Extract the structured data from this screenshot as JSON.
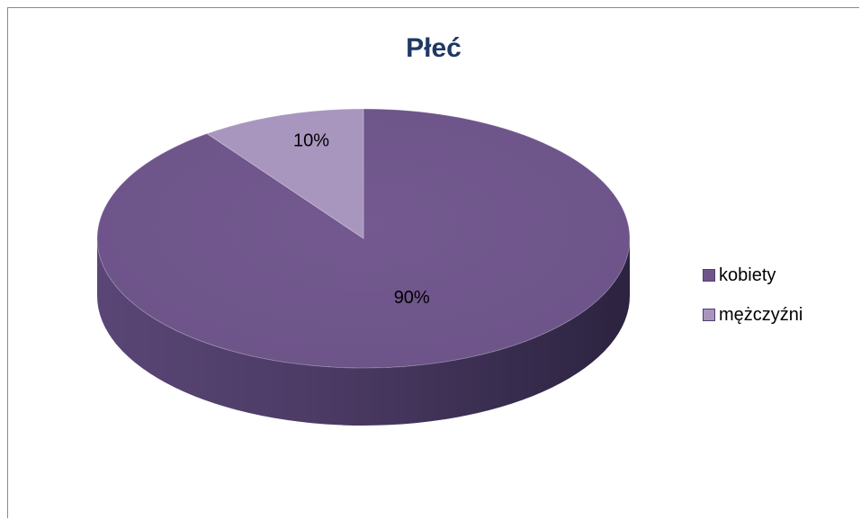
{
  "chart_data": {
    "type": "pie",
    "title": "Płeć",
    "categories": [
      "kobiety",
      "mężczyźni"
    ],
    "values": [
      90,
      10
    ],
    "data_labels": [
      "90%",
      "10%"
    ],
    "colors": [
      "#70558c",
      "#a896bf"
    ],
    "legend_placement": "right",
    "three_d": true
  }
}
